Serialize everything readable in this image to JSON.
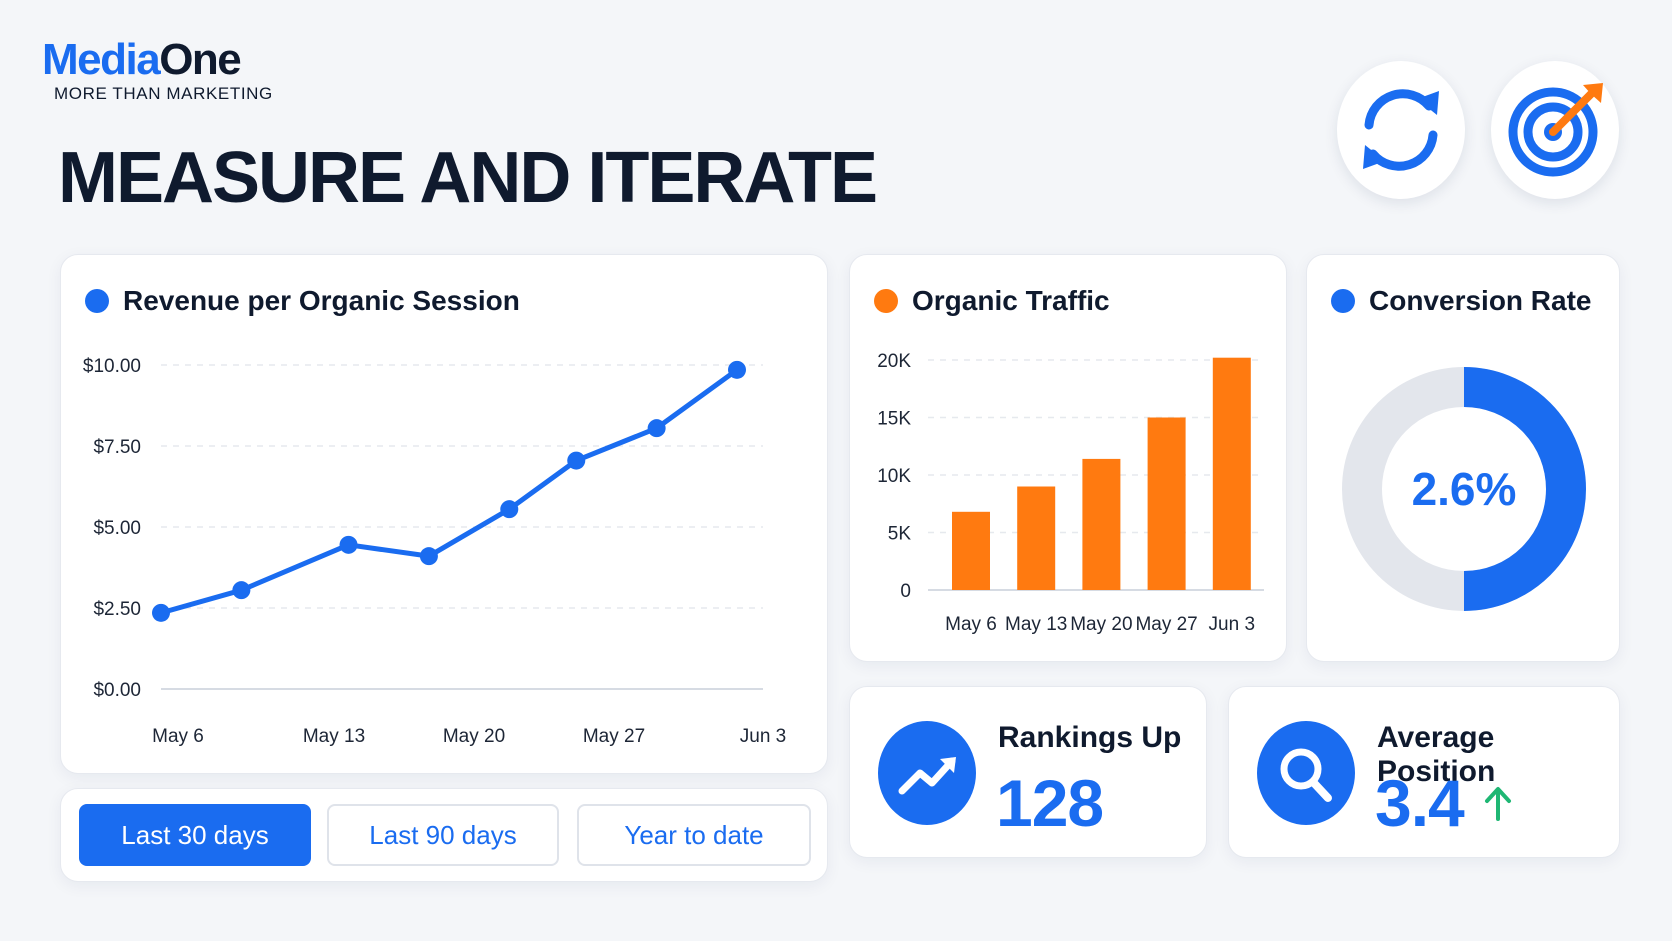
{
  "brand": {
    "name_part1": "Media",
    "name_part2": "One",
    "tagline": "MORE THAN MARKETING"
  },
  "page_title": "MEASURE AND ITERATE",
  "header_icons": [
    "refresh-icon",
    "target-icon"
  ],
  "colors": {
    "brand_blue": "#1a6cf0",
    "accent_orange": "#ff7a10",
    "ring_gray": "#e3e6ec",
    "up_green": "#1fb774"
  },
  "chart_data": [
    {
      "type": "line",
      "title": "Revenue per Organic Session",
      "legend_color": "#1a6cf0",
      "x_tick_labels": [
        "May 6",
        "May 13",
        "May 20",
        "May 27",
        "Jun 3"
      ],
      "y_tick_labels": [
        "$10.00",
        "$7.50",
        "$5.00",
        "$2.50",
        "$0.00"
      ],
      "ylim": [
        0,
        10
      ],
      "grid": true,
      "series": [
        {
          "x": [
            6,
            9,
            13,
            16,
            19,
            21.5,
            24.5,
            27.5
          ],
          "values": [
            2.35,
            3.05,
            4.45,
            4.1,
            5.55,
            7.05,
            8.05,
            9.85
          ]
        }
      ]
    },
    {
      "type": "bar",
      "title": "Organic Traffic",
      "legend_color": "#ff7a10",
      "categories": [
        "May 6",
        "May 13",
        "May 20",
        "May 27",
        "Jun 3"
      ],
      "values": [
        6800,
        9000,
        11400,
        15000,
        20200
      ],
      "y_tick_labels": [
        "20K",
        "15K",
        "10K",
        "5K",
        "0"
      ],
      "ylim": [
        0,
        20000
      ],
      "grid": true
    },
    {
      "type": "pie",
      "title": "Conversion Rate",
      "legend_color": "#1a6cf0",
      "center_label": "2.6%",
      "filled_fraction": 0.5
    }
  ],
  "date_ranges": {
    "last_30": "Last 30 days",
    "last_90": "Last 90 days",
    "ytd": "Year to date",
    "active": "Last 30 days"
  },
  "kpis": {
    "rankings": {
      "label": "Rankings Up",
      "value": "128",
      "icon": "trending-up-icon"
    },
    "position": {
      "label": "Average Position",
      "value": "3.4",
      "icon": "search-icon",
      "trend_icon": "arrow-up-icon"
    }
  }
}
